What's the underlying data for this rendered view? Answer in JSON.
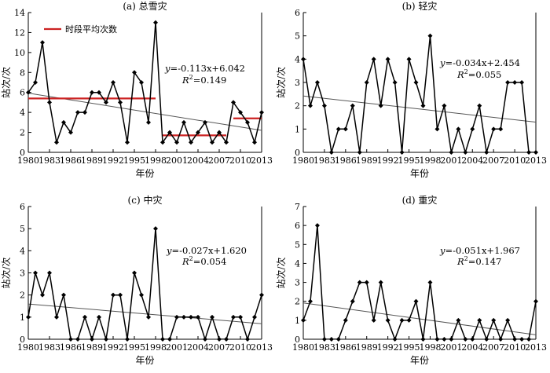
{
  "chart_data": [
    {
      "type": "line",
      "title": "(a) 总雪灾",
      "ylabel": "站次/次",
      "xlabel": "年份",
      "ylim": [
        0,
        14
      ],
      "yticks": [
        0,
        2,
        4,
        6,
        8,
        10,
        12,
        14
      ],
      "xticks": [
        1980,
        1983,
        1986,
        1989,
        1992,
        1995,
        1998,
        2001,
        2004,
        2007,
        2010,
        2013
      ],
      "x": [
        1980,
        1981,
        1982,
        1983,
        1984,
        1985,
        1986,
        1987,
        1988,
        1989,
        1990,
        1991,
        1992,
        1993,
        1994,
        1995,
        1996,
        1997,
        1998,
        1999,
        2000,
        2001,
        2002,
        2003,
        2004,
        2005,
        2006,
        2007,
        2008,
        2009,
        2010,
        2011,
        2012,
        2013
      ],
      "series": [
        {
          "values": [
            6,
            7,
            11,
            5,
            1,
            3,
            2,
            4,
            4,
            6,
            6,
            5,
            7,
            5,
            1,
            8,
            7,
            3,
            13,
            1,
            2,
            1,
            3,
            1,
            2,
            3,
            1,
            2,
            1,
            5,
            4,
            3,
            1,
            4
          ]
        }
      ],
      "trend": {
        "slope": -0.113,
        "intercept": 6.042
      },
      "equation": "=-0.113x+6.042",
      "r2": "=0.149",
      "legend": "时段平均次数",
      "period_means": [
        {
          "from": 1980,
          "to": 1998,
          "value": 5.4
        },
        {
          "from": 1999,
          "to": 2008,
          "value": 1.7
        },
        {
          "from": 2009,
          "to": 2013,
          "value": 3.4
        }
      ]
    },
    {
      "type": "line",
      "title": "(b) 轻灾",
      "ylabel": "站次/次",
      "xlabel": "年份",
      "ylim": [
        0,
        6
      ],
      "yticks": [
        0,
        1,
        2,
        3,
        4,
        5,
        6
      ],
      "xticks": [
        1980,
        1983,
        1986,
        1989,
        1992,
        1995,
        1998,
        2001,
        2004,
        2007,
        2010,
        2013
      ],
      "x": [
        1980,
        1981,
        1982,
        1983,
        1984,
        1985,
        1986,
        1987,
        1988,
        1989,
        1990,
        1991,
        1992,
        1993,
        1994,
        1995,
        1996,
        1997,
        1998,
        1999,
        2000,
        2001,
        2002,
        2003,
        2004,
        2005,
        2006,
        2007,
        2008,
        2009,
        2010,
        2011,
        2012,
        2013
      ],
      "series": [
        {
          "values": [
            4,
            2,
            3,
            2,
            0,
            1,
            1,
            2,
            0,
            3,
            4,
            2,
            4,
            3,
            0,
            4,
            3,
            2,
            5,
            1,
            2,
            0,
            1,
            0,
            1,
            2,
            0,
            1,
            1,
            3,
            3,
            3,
            0,
            0
          ]
        }
      ],
      "trend": {
        "slope": -0.034,
        "intercept": 2.454
      },
      "equation": "=-0.034x+2.454",
      "r2": "=0.055"
    },
    {
      "type": "line",
      "title": "(c) 中灾",
      "ylabel": "站次/次",
      "xlabel": "年份",
      "ylim": [
        0,
        6
      ],
      "yticks": [
        0,
        1,
        2,
        3,
        4,
        5,
        6
      ],
      "xticks": [
        1980,
        1983,
        1986,
        1989,
        1992,
        1995,
        1998,
        2001,
        2004,
        2007,
        2010,
        2013
      ],
      "x": [
        1980,
        1981,
        1982,
        1983,
        1984,
        1985,
        1986,
        1987,
        1988,
        1989,
        1990,
        1991,
        1992,
        1993,
        1994,
        1995,
        1996,
        1997,
        1998,
        1999,
        2000,
        2001,
        2002,
        2003,
        2004,
        2005,
        2006,
        2007,
        2008,
        2009,
        2010,
        2011,
        2012,
        2013
      ],
      "series": [
        {
          "values": [
            1,
            3,
            2,
            3,
            1,
            2,
            0,
            0,
            1,
            0,
            1,
            0,
            2,
            2,
            0,
            3,
            2,
            1,
            5,
            0,
            0,
            1,
            1,
            1,
            1,
            0,
            1,
            0,
            0,
            1,
            1,
            0,
            1,
            2
          ]
        }
      ],
      "trend": {
        "slope": -0.027,
        "intercept": 1.62
      },
      "equation": "=-0.027x+1.620",
      "r2": "=0.054"
    },
    {
      "type": "line",
      "title": "(d) 重灾",
      "ylabel": "站次/次",
      "xlabel": "年份",
      "ylim": [
        0,
        7
      ],
      "yticks": [
        0,
        1,
        2,
        3,
        4,
        5,
        6,
        7
      ],
      "xticks": [
        1980,
        1983,
        1986,
        1989,
        1992,
        1995,
        1998,
        2001,
        2004,
        2007,
        2010,
        2013
      ],
      "x": [
        1980,
        1981,
        1982,
        1983,
        1984,
        1985,
        1986,
        1987,
        1988,
        1989,
        1990,
        1991,
        1992,
        1993,
        1994,
        1995,
        1996,
        1997,
        1998,
        1999,
        2000,
        2001,
        2002,
        2003,
        2004,
        2005,
        2006,
        2007,
        2008,
        2009,
        2010,
        2011,
        2012,
        2013
      ],
      "series": [
        {
          "values": [
            1,
            2,
            6,
            0,
            0,
            0,
            1,
            2,
            3,
            3,
            1,
            3,
            1,
            0,
            1,
            1,
            2,
            0,
            3,
            0,
            0,
            0,
            1,
            0,
            0,
            1,
            0,
            1,
            0,
            1,
            0,
            0,
            0,
            2
          ]
        }
      ],
      "trend": {
        "slope": -0.051,
        "intercept": 1.967
      },
      "equation": "=-0.051x+1.967",
      "r2": "=0.147"
    }
  ]
}
